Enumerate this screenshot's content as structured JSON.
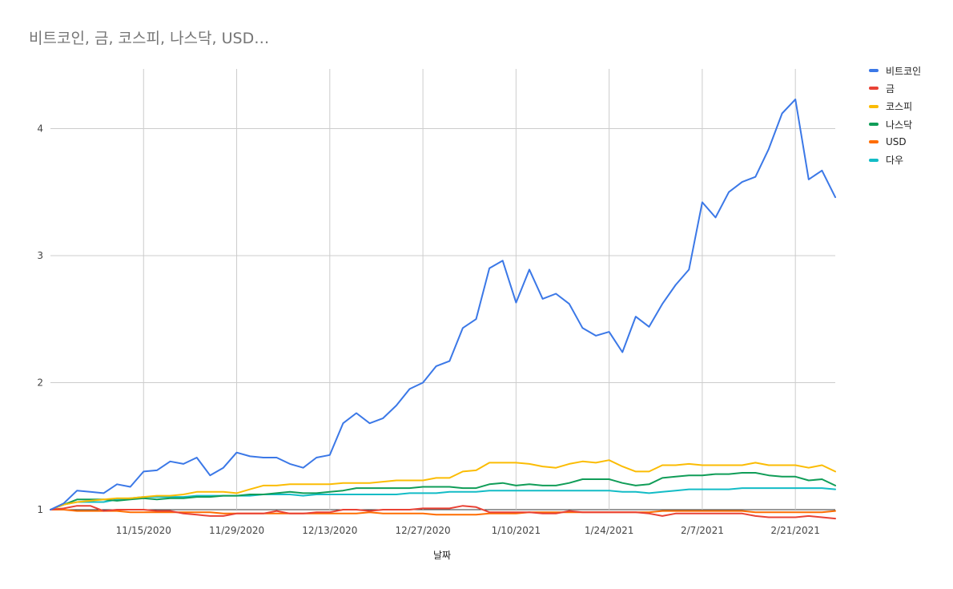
{
  "title": "비트코인, 금, 코스피, 나스닥, USD…",
  "chart_data": {
    "type": "line",
    "title": "비트코인, 금, 코스피, 나스닥, USD…",
    "xlabel": "날짜",
    "ylabel": "",
    "x_range": [
      "2020-11-01",
      "2021-02-27"
    ],
    "ylim": [
      1,
      4.47
    ],
    "y_ticks": [
      1,
      2,
      3,
      4
    ],
    "x_ticks": [
      "11/15/2020",
      "11/29/2020",
      "12/13/2020",
      "12/27/2020",
      "1/10/2021",
      "1/24/2021",
      "2/7/2021",
      "2/21/2021"
    ],
    "grid": true,
    "legend_position": "right",
    "x": [
      "2020-11-01",
      "2020-11-03",
      "2020-11-05",
      "2020-11-07",
      "2020-11-09",
      "2020-11-11",
      "2020-11-13",
      "2020-11-15",
      "2020-11-17",
      "2020-11-19",
      "2020-11-21",
      "2020-11-23",
      "2020-11-25",
      "2020-11-27",
      "2020-11-29",
      "2020-12-01",
      "2020-12-03",
      "2020-12-05",
      "2020-12-07",
      "2020-12-09",
      "2020-12-11",
      "2020-12-13",
      "2020-12-15",
      "2020-12-17",
      "2020-12-19",
      "2020-12-21",
      "2020-12-23",
      "2020-12-25",
      "2020-12-27",
      "2020-12-29",
      "2020-12-31",
      "2021-01-02",
      "2021-01-04",
      "2021-01-06",
      "2021-01-08",
      "2021-01-10",
      "2021-01-12",
      "2021-01-14",
      "2021-01-16",
      "2021-01-18",
      "2021-01-20",
      "2021-01-22",
      "2021-01-24",
      "2021-01-26",
      "2021-01-28",
      "2021-01-30",
      "2021-02-01",
      "2021-02-03",
      "2021-02-05",
      "2021-02-07",
      "2021-02-09",
      "2021-02-11",
      "2021-02-13",
      "2021-02-15",
      "2021-02-17",
      "2021-02-19",
      "2021-02-21",
      "2021-02-23",
      "2021-02-25",
      "2021-02-27"
    ],
    "series": [
      {
        "name": "비트코인",
        "color": "#3b78e7",
        "values": [
          1.0,
          1.05,
          1.15,
          1.14,
          1.13,
          1.2,
          1.18,
          1.3,
          1.31,
          1.38,
          1.36,
          1.41,
          1.27,
          1.33,
          1.45,
          1.42,
          1.41,
          1.41,
          1.36,
          1.33,
          1.41,
          1.43,
          1.68,
          1.76,
          1.68,
          1.72,
          1.82,
          1.95,
          2.0,
          2.13,
          2.17,
          2.43,
          2.5,
          2.9,
          2.96,
          2.63,
          2.89,
          2.66,
          2.7,
          2.62,
          2.43,
          2.37,
          2.4,
          2.24,
          2.52,
          2.44,
          2.62,
          2.77,
          2.89,
          3.42,
          3.3,
          3.5,
          3.58,
          3.62,
          3.84,
          4.12,
          4.23,
          3.6,
          3.67,
          3.46
        ]
      },
      {
        "name": "금",
        "color": "#e94235",
        "values": [
          1.0,
          1.01,
          1.03,
          1.03,
          0.99,
          1.0,
          1.0,
          1.0,
          0.99,
          0.99,
          0.97,
          0.96,
          0.95,
          0.95,
          0.97,
          0.97,
          0.97,
          0.99,
          0.97,
          0.97,
          0.98,
          0.98,
          1.0,
          1.0,
          0.99,
          1.0,
          1.0,
          1.0,
          1.01,
          1.01,
          1.01,
          1.03,
          1.02,
          0.98,
          0.98,
          0.98,
          0.98,
          0.97,
          0.97,
          0.99,
          0.98,
          0.98,
          0.98,
          0.98,
          0.98,
          0.97,
          0.95,
          0.97,
          0.97,
          0.97,
          0.97,
          0.97,
          0.97,
          0.95,
          0.94,
          0.94,
          0.94,
          0.95,
          0.94,
          0.93
        ]
      },
      {
        "name": "코스피",
        "color": "#fbbc04",
        "values": [
          1.0,
          1.04,
          1.06,
          1.07,
          1.08,
          1.09,
          1.09,
          1.1,
          1.11,
          1.11,
          1.12,
          1.14,
          1.14,
          1.14,
          1.13,
          1.16,
          1.19,
          1.19,
          1.2,
          1.2,
          1.2,
          1.2,
          1.21,
          1.21,
          1.21,
          1.22,
          1.23,
          1.23,
          1.23,
          1.25,
          1.25,
          1.3,
          1.31,
          1.37,
          1.37,
          1.37,
          1.36,
          1.34,
          1.33,
          1.36,
          1.38,
          1.37,
          1.39,
          1.34,
          1.3,
          1.3,
          1.35,
          1.35,
          1.36,
          1.35,
          1.35,
          1.35,
          1.35,
          1.37,
          1.35,
          1.35,
          1.35,
          1.33,
          1.35,
          1.3
        ]
      },
      {
        "name": "나스닥",
        "color": "#109d58",
        "values": [
          1.0,
          1.04,
          1.08,
          1.08,
          1.08,
          1.07,
          1.08,
          1.09,
          1.08,
          1.09,
          1.09,
          1.1,
          1.1,
          1.11,
          1.11,
          1.12,
          1.12,
          1.13,
          1.14,
          1.13,
          1.13,
          1.14,
          1.15,
          1.17,
          1.17,
          1.17,
          1.17,
          1.17,
          1.18,
          1.18,
          1.18,
          1.17,
          1.17,
          1.2,
          1.21,
          1.19,
          1.2,
          1.19,
          1.19,
          1.21,
          1.24,
          1.24,
          1.24,
          1.21,
          1.19,
          1.2,
          1.25,
          1.26,
          1.27,
          1.27,
          1.28,
          1.28,
          1.29,
          1.29,
          1.27,
          1.26,
          1.26,
          1.23,
          1.24,
          1.19
        ]
      },
      {
        "name": "USD",
        "color": "#ff6d01",
        "values": [
          1.0,
          1.0,
          0.99,
          0.99,
          0.99,
          0.99,
          0.98,
          0.98,
          0.98,
          0.98,
          0.98,
          0.98,
          0.98,
          0.97,
          0.97,
          0.97,
          0.97,
          0.97,
          0.97,
          0.97,
          0.97,
          0.97,
          0.97,
          0.97,
          0.98,
          0.97,
          0.97,
          0.97,
          0.97,
          0.96,
          0.96,
          0.96,
          0.96,
          0.97,
          0.97,
          0.97,
          0.98,
          0.98,
          0.98,
          0.98,
          0.98,
          0.98,
          0.98,
          0.98,
          0.98,
          0.98,
          0.99,
          0.99,
          0.99,
          0.99,
          0.99,
          0.99,
          0.99,
          0.98,
          0.98,
          0.98,
          0.98,
          0.98,
          0.98,
          0.99
        ]
      },
      {
        "name": "다우",
        "color": "#13bcc6",
        "values": [
          1.0,
          1.04,
          1.06,
          1.06,
          1.06,
          1.08,
          1.09,
          1.1,
          1.1,
          1.1,
          1.1,
          1.11,
          1.11,
          1.11,
          1.11,
          1.11,
          1.12,
          1.12,
          1.12,
          1.11,
          1.12,
          1.12,
          1.12,
          1.12,
          1.12,
          1.12,
          1.12,
          1.13,
          1.13,
          1.13,
          1.14,
          1.14,
          1.14,
          1.15,
          1.15,
          1.15,
          1.15,
          1.15,
          1.15,
          1.15,
          1.15,
          1.15,
          1.15,
          1.14,
          1.14,
          1.13,
          1.14,
          1.15,
          1.16,
          1.16,
          1.16,
          1.16,
          1.17,
          1.17,
          1.17,
          1.17,
          1.17,
          1.17,
          1.17,
          1.16
        ]
      }
    ]
  }
}
